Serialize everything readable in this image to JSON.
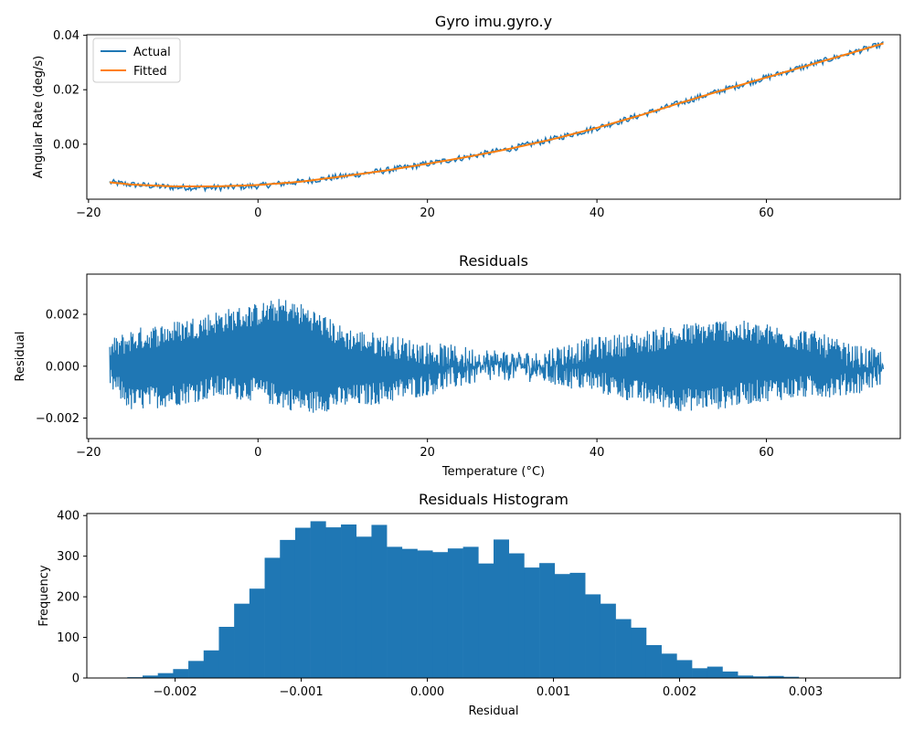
{
  "chart_data": [
    {
      "type": "line",
      "title": "Gyro imu.gyro.y",
      "xlabel": "",
      "ylabel": "Angular Rate (deg/s)",
      "xlim": [
        -20.2,
        75.8
      ],
      "ylim": [
        -0.0202,
        0.0402
      ],
      "xticks": [
        -20,
        0,
        20,
        40,
        60
      ],
      "xtick_labels": [
        "−20",
        "0",
        "20",
        "40",
        "60"
      ],
      "yticks": [
        0.0,
        0.02,
        0.04
      ],
      "ytick_labels": [
        "0.00",
        "0.02",
        "0.04"
      ],
      "legend": "top-left",
      "grid": false,
      "series": [
        {
          "name": "Actual",
          "color": "#1f77b4",
          "band_width": 0.0022,
          "x": [
            -17.5,
            -15,
            -10,
            -5,
            0,
            5,
            10,
            15,
            20,
            25,
            30,
            35,
            40,
            45,
            50,
            55,
            60,
            65,
            70,
            73.8
          ],
          "y": [
            -0.014,
            -0.0148,
            -0.0158,
            -0.016,
            -0.0153,
            -0.0138,
            -0.0118,
            -0.0097,
            -0.0072,
            -0.0045,
            -0.0015,
            0.002,
            0.006,
            0.0105,
            0.0153,
            0.02,
            0.0245,
            0.029,
            0.0335,
            0.0368
          ]
        },
        {
          "name": "Fitted",
          "color": "#ff7f0e",
          "x": [
            -17.5,
            -15,
            -10,
            -5,
            0,
            5,
            10,
            15,
            20,
            25,
            30,
            35,
            40,
            45,
            50,
            55,
            60,
            65,
            70,
            73.8
          ],
          "y": [
            -0.014,
            -0.0148,
            -0.0155,
            -0.0155,
            -0.015,
            -0.0138,
            -0.0118,
            -0.0097,
            -0.0072,
            -0.0045,
            -0.0015,
            0.002,
            0.006,
            0.0105,
            0.0153,
            0.02,
            0.0245,
            0.029,
            0.0335,
            0.037
          ]
        }
      ]
    },
    {
      "type": "line",
      "title": "Residuals",
      "xlabel": "Temperature (°C)",
      "ylabel": "Residual",
      "xlim": [
        -20.2,
        75.8
      ],
      "ylim": [
        -0.00279,
        0.00355
      ],
      "xticks": [
        -20,
        0,
        20,
        40,
        60
      ],
      "xtick_labels": [
        "−20",
        "0",
        "20",
        "40",
        "60"
      ],
      "yticks": [
        -0.002,
        0.0,
        0.002
      ],
      "ytick_labels": [
        "−0.002",
        "0.000",
        "0.002"
      ],
      "grid": false,
      "series": [
        {
          "name": "",
          "color": "#1f77b4",
          "envelope_x": [
            -17.5,
            -15,
            -10,
            -5,
            0,
            3,
            6,
            10,
            15,
            20,
            25,
            30,
            33.5,
            34,
            40,
            45,
            50,
            55,
            60,
            65,
            70,
            73.8
          ],
          "upper": [
            0.0006,
            0.001,
            0.0013,
            0.0017,
            0.002,
            0.0022,
            0.0019,
            0.0011,
            0.0008,
            0.0005,
            0.0003,
            0.0002,
            0.0001,
            0.0003,
            0.0007,
            0.0009,
            0.0012,
            0.0014,
            0.0012,
            0.001,
            0.0004,
            0.0002
          ],
          "lower": [
            -0.0005,
            -0.0013,
            -0.0011,
            -0.0008,
            -0.0009,
            -0.0012,
            -0.0014,
            -0.0012,
            -0.001,
            -0.0007,
            -0.0003,
            -0.0001,
            -0.0002,
            -0.0003,
            -0.0006,
            -0.001,
            -0.0013,
            -0.0012,
            -0.0009,
            -0.0008,
            -0.0007,
            -0.0003
          ],
          "noise": 0.00045,
          "min": -0.0025,
          "max": 0.0035
        }
      ]
    },
    {
      "type": "bar",
      "title": "Residuals Histogram",
      "xlabel": "Residual",
      "ylabel": "Frequency",
      "xlim": [
        -0.0027,
        0.00375
      ],
      "ylim": [
        0,
        405
      ],
      "xticks": [
        -0.002,
        -0.001,
        0.0,
        0.001,
        0.002,
        0.003
      ],
      "xtick_labels": [
        "−0.002",
        "−0.001",
        "0.000",
        "0.001",
        "0.002",
        "0.003"
      ],
      "yticks": [
        0,
        100,
        200,
        300,
        400
      ],
      "ytick_labels": [
        "0",
        "100",
        "200",
        "300",
        "400"
      ],
      "grid": false,
      "color": "#1f77b4",
      "bin_start": -0.0025,
      "bin_width": 0.000121,
      "values": [
        1,
        2,
        6,
        12,
        22,
        42,
        68,
        126,
        183,
        220,
        296,
        340,
        370,
        386,
        371,
        378,
        348,
        377,
        323,
        318,
        314,
        310,
        319,
        323,
        282,
        341,
        307,
        272,
        283,
        256,
        259,
        206,
        183,
        145,
        124,
        81,
        60,
        44,
        24,
        28,
        16,
        6,
        4,
        5,
        3,
        1,
        1,
        0,
        0,
        1
      ]
    }
  ]
}
